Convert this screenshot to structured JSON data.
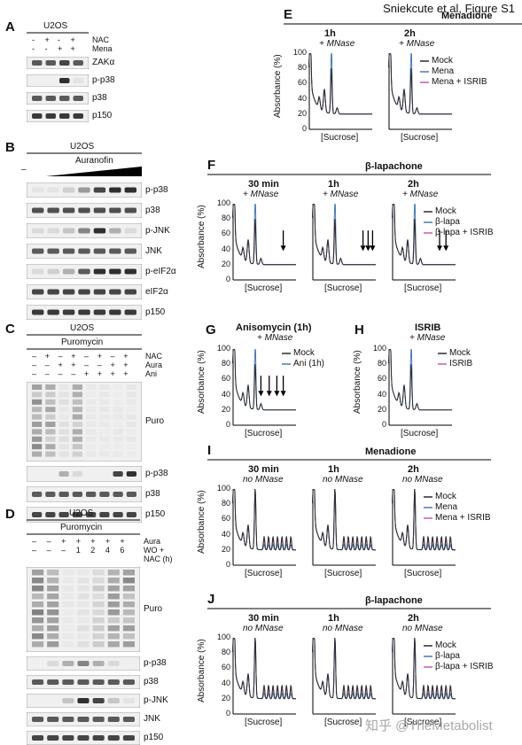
{
  "header": "Sniekcute et al, Figure S1",
  "watermark": "知乎 @TheMetabolist",
  "colors": {
    "mock": "#2b2b2b",
    "treat": "#4a79b5",
    "isrib": "#c85aa8",
    "blot_bg": "#f0f0f0",
    "band": "#1a1a1a"
  },
  "panelA": {
    "letter": "A",
    "cell": "U2OS",
    "rows": [
      {
        "label": "NAC",
        "vals": [
          "-",
          "+",
          "-",
          "+"
        ]
      },
      {
        "label": "Mena",
        "vals": [
          "-",
          "-",
          "+",
          "+"
        ]
      }
    ],
    "blots": [
      "ZAKα",
      "p-p38",
      "p38",
      "p150"
    ]
  },
  "panelB": {
    "letter": "B",
    "cell": "U2OS",
    "dash": "–",
    "treatment": "Auranofin",
    "blots": [
      "p-p38",
      "p38",
      "p-JNK",
      "JNK",
      "p-eIF2α",
      "eIF2α",
      "p150"
    ]
  },
  "panelC": {
    "letter": "C",
    "cell": "U2OS",
    "bar": "Puromycin",
    "rows": [
      {
        "label": "NAC",
        "vals": [
          "–",
          "+",
          "–",
          "+",
          "–",
          "+",
          "–",
          "+"
        ]
      },
      {
        "label": "Aura",
        "vals": [
          "–",
          "–",
          "+",
          "+",
          "–",
          "–",
          "+",
          "+"
        ]
      },
      {
        "label": "Ani",
        "vals": [
          "–",
          "–",
          "–",
          "–",
          "+",
          "+",
          "+",
          "+"
        ]
      }
    ],
    "blots": [
      "Puro",
      "p-p38",
      "p38",
      "p150"
    ]
  },
  "panelD": {
    "letter": "D",
    "cell": "U2OS",
    "bar": "Puromycin",
    "rows": [
      {
        "label": "Aura",
        "vals": [
          "–",
          "–",
          "+",
          "+",
          "+",
          "+",
          "+"
        ]
      },
      {
        "label": "WO +",
        "vals": [
          "–",
          "–",
          "–",
          "1",
          "2",
          "4",
          "6"
        ]
      }
    ],
    "row_suffix": "NAC (h)",
    "blots": [
      "Puro",
      "p-p38",
      "p38",
      "p-JNK",
      "JNK",
      "p150"
    ]
  },
  "panelE": {
    "letter": "E",
    "title": "Menadione",
    "cols": [
      {
        "t": "1h",
        "s": "+ MNase"
      },
      {
        "t": "2h",
        "s": "+ MNase"
      }
    ],
    "legend": [
      "Mock",
      "Mena",
      "Mena + ISRIB"
    ]
  },
  "panelF": {
    "letter": "F",
    "title": "β-lapachone",
    "cols": [
      {
        "t": "30 min",
        "s": "+ MNase"
      },
      {
        "t": "1h",
        "s": "+ MNase"
      },
      {
        "t": "2h",
        "s": "+ MNase"
      }
    ],
    "legend": [
      "Mock",
      "β-lapa",
      "β-lapa + ISRIB"
    ]
  },
  "panelG": {
    "letter": "G",
    "title": "Anisomycin (1h)",
    "sub": "+ MNase",
    "legend": [
      "Mock",
      "Ani (1h)"
    ]
  },
  "panelH": {
    "letter": "H",
    "title": "ISRIB",
    "sub": "+ MNase",
    "legend": [
      "Mock",
      "ISRIB"
    ]
  },
  "panelI": {
    "letter": "I",
    "title": "Menadione",
    "cols": [
      {
        "t": "30 min",
        "s": "no MNase"
      },
      {
        "t": "1h",
        "s": "no MNase"
      },
      {
        "t": "2h",
        "s": "no MNase"
      }
    ],
    "legend": [
      "Mock",
      "Mena",
      "Mena + ISRIB"
    ]
  },
  "panelJ": {
    "letter": "J",
    "title": "β-lapachone",
    "cols": [
      {
        "t": "30 min",
        "s": "no MNase"
      },
      {
        "t": "1h",
        "s": "no MNase"
      },
      {
        "t": "2h",
        "s": "no MNase"
      }
    ],
    "legend": [
      "Mock",
      "β-lapa",
      "β-lapa + ISRIB"
    ]
  },
  "axis": {
    "ylabel": "Absorbance (%)",
    "xlabel": "[Sucrose]",
    "ticks": [
      "100",
      "80",
      "60",
      "40",
      "20",
      "0"
    ]
  }
}
